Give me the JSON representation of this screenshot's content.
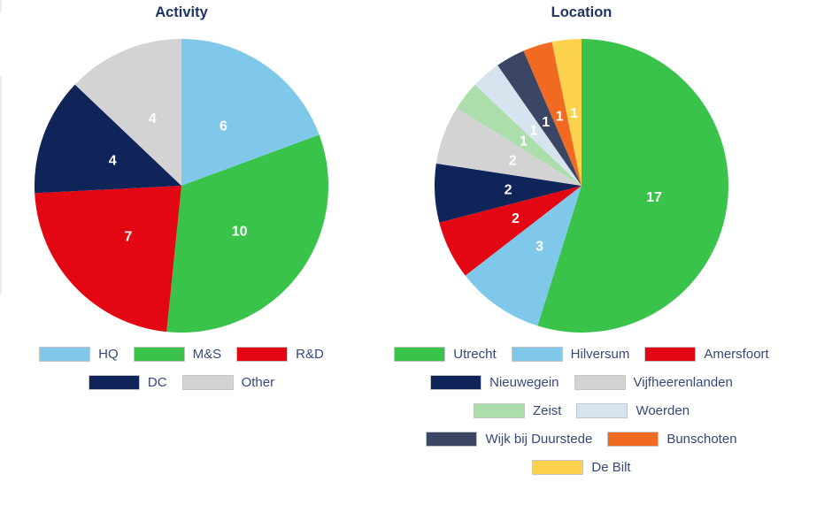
{
  "styles": {
    "title_color": "#1f3664",
    "legend_text_color": "#35497a",
    "slice_label_color": "#ffffff",
    "background": "#ffffff"
  },
  "chart_data": [
    {
      "type": "pie",
      "title": "Activity",
      "labels": [
        "HQ",
        "M&S",
        "R&D",
        "DC",
        "Other"
      ],
      "values": [
        6,
        10,
        7,
        4,
        4
      ],
      "total": 31,
      "colors": [
        "#7fc8ea",
        "#3ac34a",
        "#e30613",
        "#0f2459",
        "#d3d3d3"
      ],
      "start_angle_deg": 0,
      "direction": "clockwise",
      "data_labels": "values",
      "legend_position": "bottom",
      "legend_rows": [
        [
          "HQ",
          "M&S",
          "R&D"
        ],
        [
          "DC",
          "Other"
        ]
      ]
    },
    {
      "type": "pie",
      "title": "Location",
      "labels": [
        "Utrecht",
        "Hilversum",
        "Amersfoort",
        "Nieuwegein",
        "Vijfheerenlanden",
        "Zeist",
        "Woerden",
        "Wijk bij Duurstede",
        "Bunschoten",
        "De Bilt"
      ],
      "values": [
        17,
        3,
        2,
        2,
        2,
        1,
        1,
        1,
        1,
        1
      ],
      "total": 31,
      "colors": [
        "#3ac34a",
        "#7fc8ea",
        "#e30613",
        "#0f2459",
        "#d3d3d3",
        "#acdeab",
        "#d5e4ef",
        "#3a4663",
        "#f16a21",
        "#fbd14e"
      ],
      "start_angle_deg": 0,
      "direction": "clockwise",
      "data_labels": "values",
      "legend_position": "bottom",
      "legend_rows": [
        [
          "Utrecht",
          "Hilversum",
          "Amersfoort"
        ],
        [
          "Nieuwegein",
          "Vijfheerenlanden"
        ],
        [
          "Zeist",
          "Woerden"
        ],
        [
          "Wijk bij Duurstede",
          "Bunschoten"
        ],
        [
          "De Bilt"
        ]
      ]
    }
  ]
}
